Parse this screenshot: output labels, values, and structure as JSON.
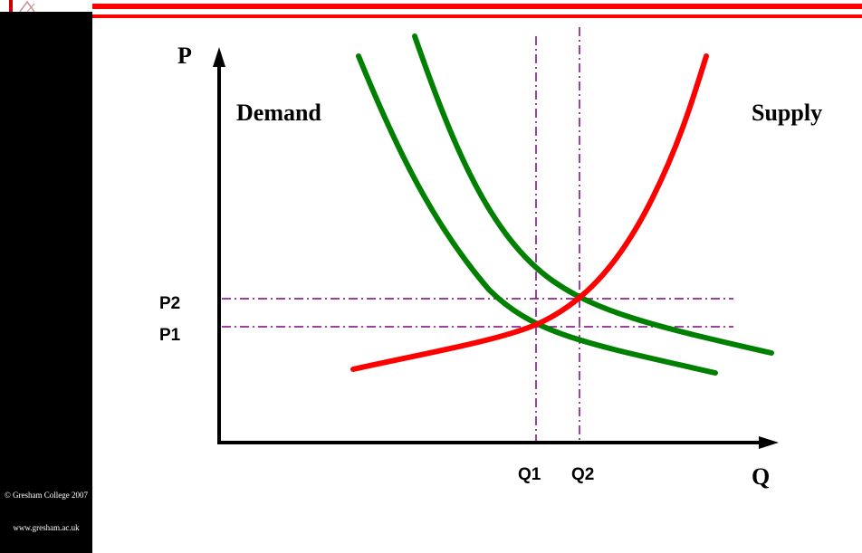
{
  "header": {
    "accent_color": "#ff0000"
  },
  "sidebar": {
    "background": "#000000",
    "copyright": "© Gresham College 2007",
    "website": "www.gresham.ac.uk"
  },
  "diagram": {
    "axis_labels": {
      "y": "P",
      "x": "Q"
    },
    "curve_labels": {
      "demand": "Demand",
      "supply": "Supply"
    },
    "price_labels": [
      "P2",
      "P1"
    ],
    "quantity_labels": [
      "Q1",
      "Q2"
    ],
    "colors": {
      "demand": "#008000",
      "supply": "#ff0000",
      "guides": "#800080",
      "axes": "#000000"
    },
    "curves": [
      {
        "name": "demand-curve-1",
        "kind": "demand"
      },
      {
        "name": "demand-curve-2",
        "kind": "demand"
      },
      {
        "name": "supply-curve",
        "kind": "supply"
      }
    ]
  }
}
